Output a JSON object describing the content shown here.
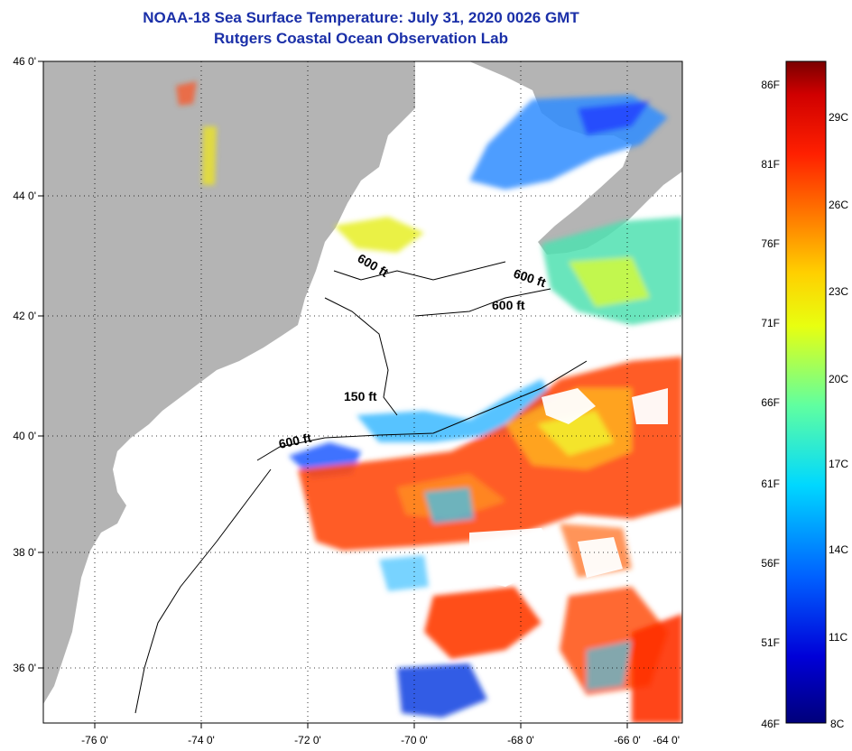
{
  "title": {
    "line1": "NOAA-18 Sea Surface Temperature:  July 31, 2020 0026 GMT",
    "line2": "Rutgers Coastal Ocean Observation Lab"
  },
  "map": {
    "lon_ticks": [
      "-76 0'",
      "-74 0'",
      "-72 0'",
      "-70 0'",
      "-68 0'",
      "-66 0'",
      "-64 0'"
    ],
    "lat_ticks": [
      "46 0'",
      "44 0'",
      "42 0'",
      "40 0'",
      "38 0'",
      "36 0'"
    ],
    "contour_labels": [
      "600 ft",
      "600 ft",
      "600 ft",
      "150 ft",
      "600 ft"
    ]
  },
  "colorbar": {
    "fahrenheit": [
      "86F",
      "81F",
      "76F",
      "71F",
      "66F",
      "61F",
      "56F",
      "51F",
      "46F"
    ],
    "celsius": [
      "29C",
      "26C",
      "23C",
      "20C",
      "17C",
      "14C",
      "11C",
      "8C"
    ]
  },
  "colors": {
    "land": "#b4b4b4",
    "water": "#ffffff",
    "title": "#1a2fa8"
  }
}
